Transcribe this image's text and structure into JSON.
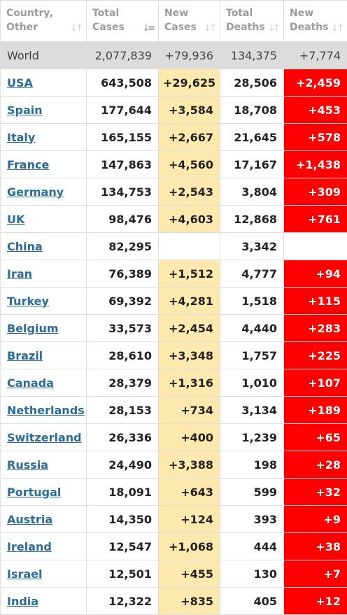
{
  "colors": {
    "header_text": "#9b9b9b",
    "world_row_bg": "#dcdcdc",
    "country_link": "#296b9b",
    "new_cases_bg": "#fde9ad",
    "new_deaths_bg": "#ff0000",
    "new_deaths_text": "#ffffff"
  },
  "header": {
    "country": "Country,\nOther",
    "total_cases": "Total\nCases",
    "new_cases": "New\nCases",
    "total_deaths": "Total\nDeaths",
    "new_deaths": "New\nDeaths",
    "sort_icon": "sort-icon",
    "active_sort_column": "total_cases"
  },
  "world": {
    "country": "World",
    "total_cases": "2,077,839",
    "new_cases": "+79,936",
    "total_deaths": "134,375",
    "new_deaths": "+7,774"
  },
  "rows": [
    {
      "country": "USA",
      "total_cases": "643,508",
      "new_cases": "+29,625",
      "total_deaths": "28,506",
      "new_deaths": "+2,459"
    },
    {
      "country": "Spain",
      "total_cases": "177,644",
      "new_cases": "+3,584",
      "total_deaths": "18,708",
      "new_deaths": "+453"
    },
    {
      "country": "Italy",
      "total_cases": "165,155",
      "new_cases": "+2,667",
      "total_deaths": "21,645",
      "new_deaths": "+578"
    },
    {
      "country": "France",
      "total_cases": "147,863",
      "new_cases": "+4,560",
      "total_deaths": "17,167",
      "new_deaths": "+1,438"
    },
    {
      "country": "Germany",
      "total_cases": "134,753",
      "new_cases": "+2,543",
      "total_deaths": "3,804",
      "new_deaths": "+309"
    },
    {
      "country": "UK",
      "total_cases": "98,476",
      "new_cases": "+4,603",
      "total_deaths": "12,868",
      "new_deaths": "+761"
    },
    {
      "country": "China",
      "total_cases": "82,295",
      "new_cases": "",
      "total_deaths": "3,342",
      "new_deaths": ""
    },
    {
      "country": "Iran",
      "total_cases": "76,389",
      "new_cases": "+1,512",
      "total_deaths": "4,777",
      "new_deaths": "+94"
    },
    {
      "country": "Turkey",
      "total_cases": "69,392",
      "new_cases": "+4,281",
      "total_deaths": "1,518",
      "new_deaths": "+115"
    },
    {
      "country": "Belgium",
      "total_cases": "33,573",
      "new_cases": "+2,454",
      "total_deaths": "4,440",
      "new_deaths": "+283"
    },
    {
      "country": "Brazil",
      "total_cases": "28,610",
      "new_cases": "+3,348",
      "total_deaths": "1,757",
      "new_deaths": "+225"
    },
    {
      "country": "Canada",
      "total_cases": "28,379",
      "new_cases": "+1,316",
      "total_deaths": "1,010",
      "new_deaths": "+107"
    },
    {
      "country": "Netherlands",
      "total_cases": "28,153",
      "new_cases": "+734",
      "total_deaths": "3,134",
      "new_deaths": "+189"
    },
    {
      "country": "Switzerland",
      "total_cases": "26,336",
      "new_cases": "+400",
      "total_deaths": "1,239",
      "new_deaths": "+65"
    },
    {
      "country": "Russia",
      "total_cases": "24,490",
      "new_cases": "+3,388",
      "total_deaths": "198",
      "new_deaths": "+28"
    },
    {
      "country": "Portugal",
      "total_cases": "18,091",
      "new_cases": "+643",
      "total_deaths": "599",
      "new_deaths": "+32"
    },
    {
      "country": "Austria",
      "total_cases": "14,350",
      "new_cases": "+124",
      "total_deaths": "393",
      "new_deaths": "+9"
    },
    {
      "country": "Ireland",
      "total_cases": "12,547",
      "new_cases": "+1,068",
      "total_deaths": "444",
      "new_deaths": "+38"
    },
    {
      "country": "Israel",
      "total_cases": "12,501",
      "new_cases": "+455",
      "total_deaths": "130",
      "new_deaths": "+7"
    },
    {
      "country": "India",
      "total_cases": "12,322",
      "new_cases": "+835",
      "total_deaths": "405",
      "new_deaths": "+12"
    }
  ]
}
